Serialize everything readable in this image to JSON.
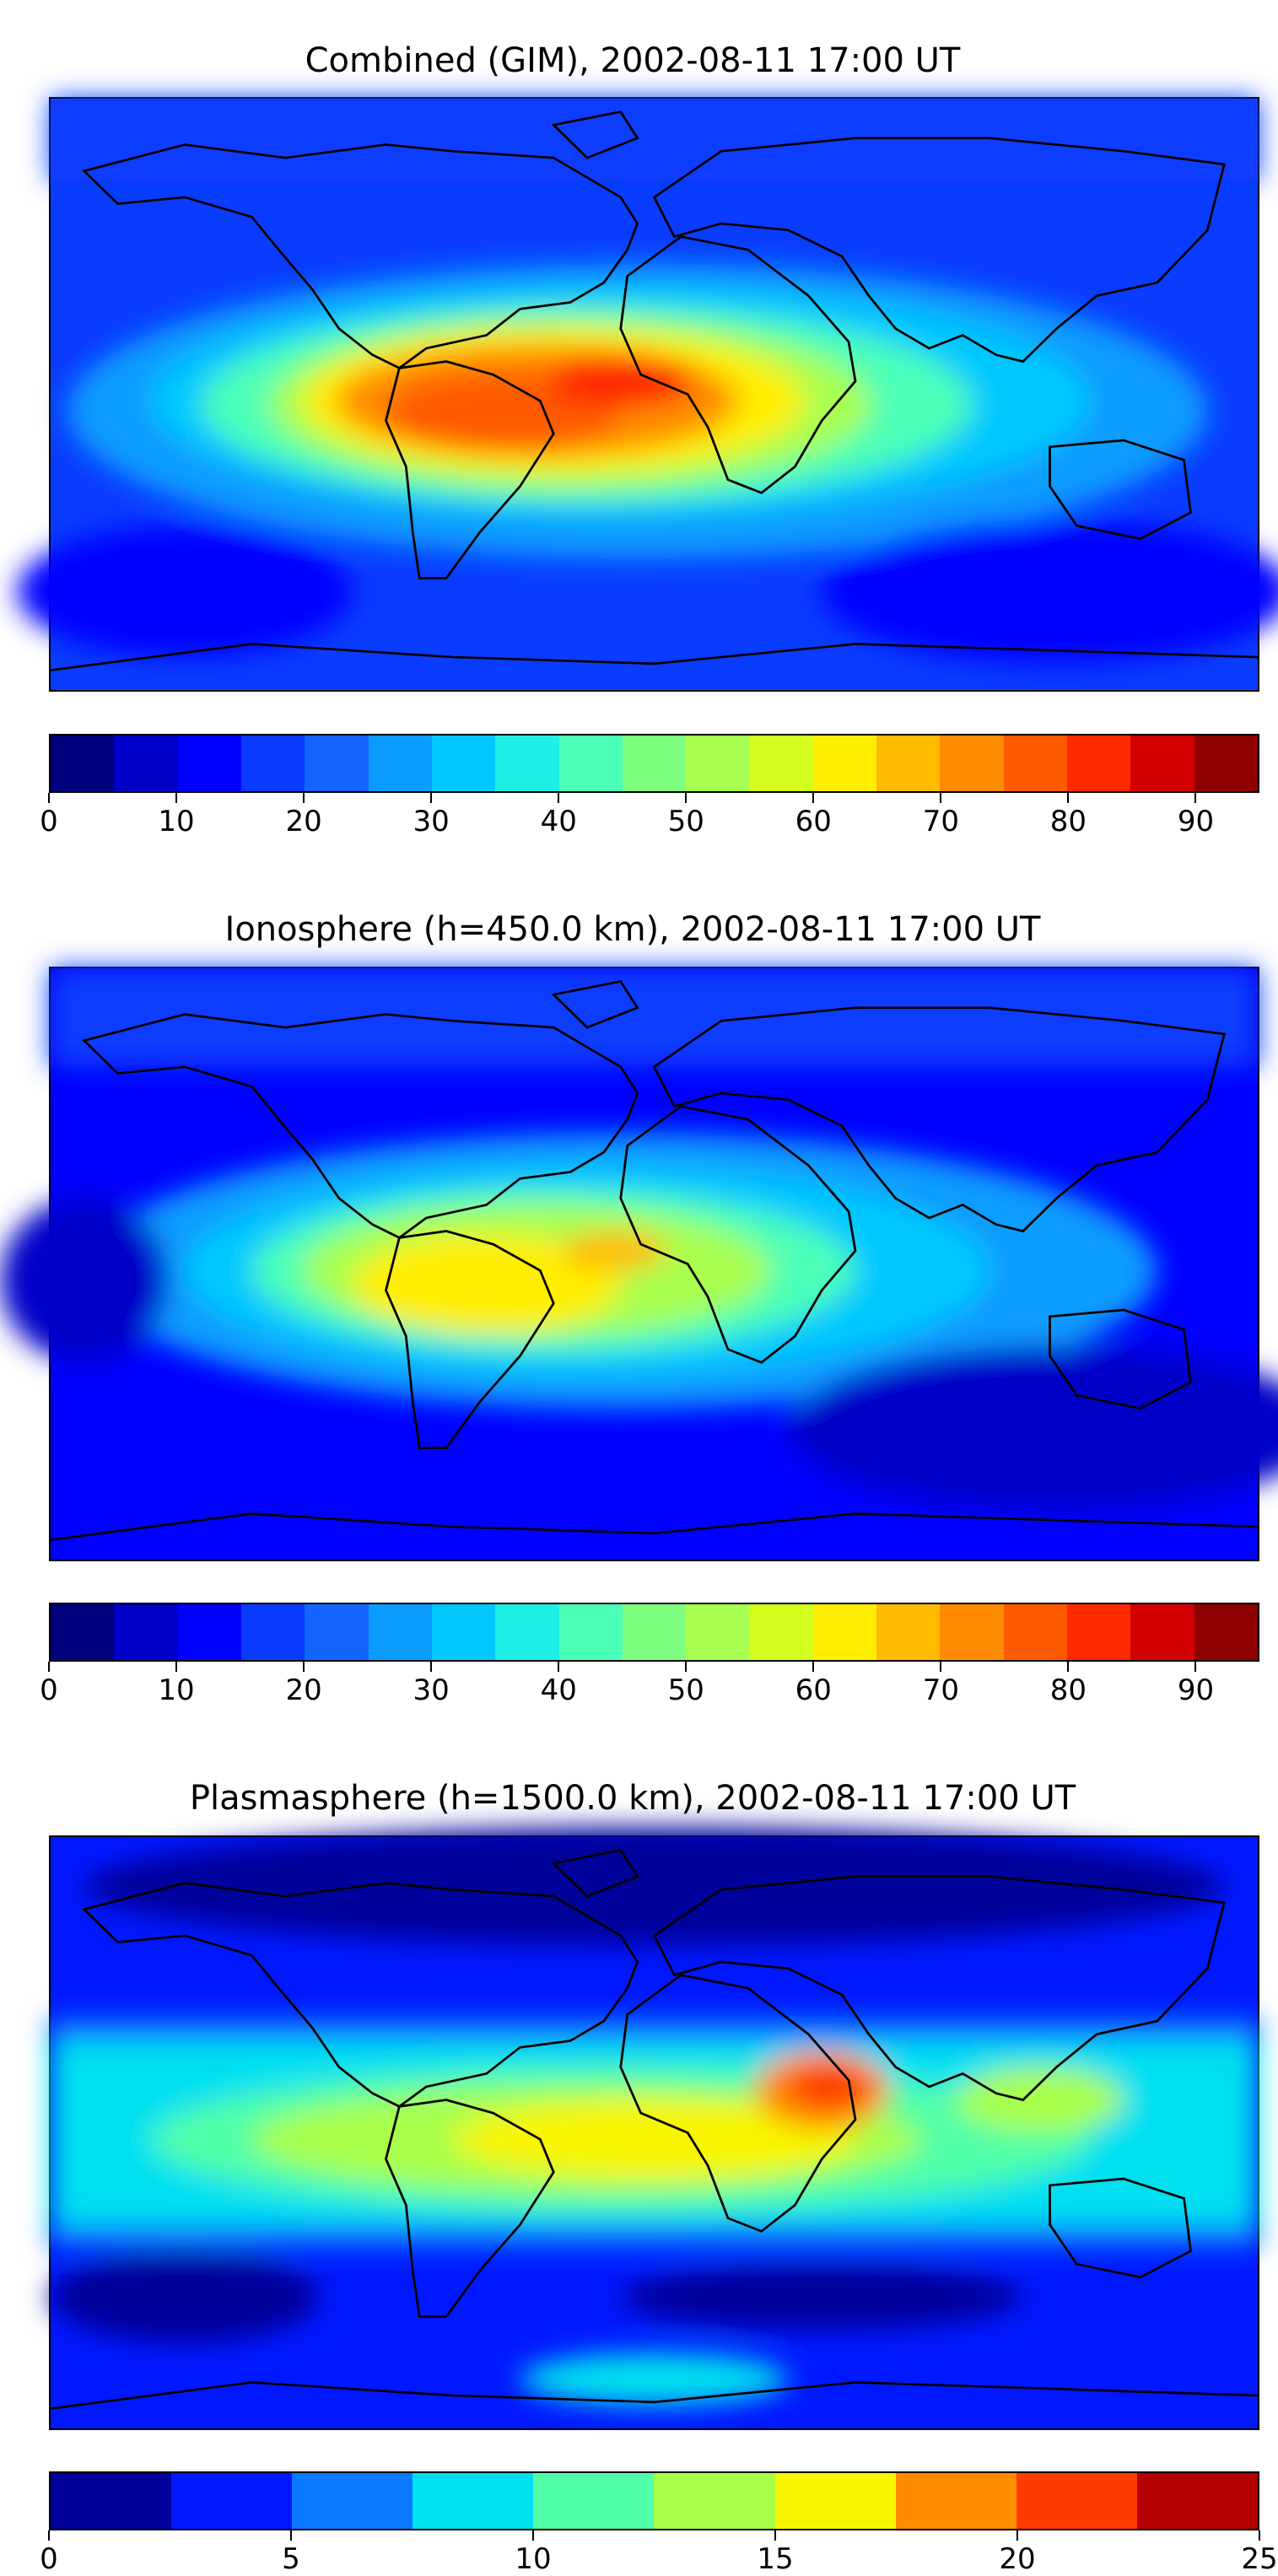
{
  "panels": [
    {
      "id": "combined",
      "title": "Combined (GIM), 2002-08-11 17:00 UT",
      "colorbar": {
        "vmin": 0,
        "vmax": 95,
        "step": 5,
        "ticks": [
          "0",
          "10",
          "20",
          "30",
          "40",
          "50",
          "60",
          "70",
          "80",
          "90"
        ],
        "tick_values": [
          0,
          10,
          20,
          30,
          40,
          50,
          60,
          70,
          80,
          90
        ],
        "colors": [
          "#00007f",
          "#0000c8",
          "#0000ff",
          "#0a3cff",
          "#1464ff",
          "#0a9cff",
          "#00c8ff",
          "#1ef0e6",
          "#4cffb8",
          "#7fff80",
          "#a8ff50",
          "#d4ff1e",
          "#ffee00",
          "#ffbb00",
          "#ff8c00",
          "#ff5a00",
          "#ff2800",
          "#d20000",
          "#8c0000"
        ]
      }
    },
    {
      "id": "ionosphere",
      "title": "Ionosphere  (h=450.0 km), 2002-08-11 17:00 UT",
      "colorbar": {
        "vmin": 0,
        "vmax": 95,
        "step": 5,
        "ticks": [
          "0",
          "10",
          "20",
          "30",
          "40",
          "50",
          "60",
          "70",
          "80",
          "90"
        ],
        "tick_values": [
          0,
          10,
          20,
          30,
          40,
          50,
          60,
          70,
          80,
          90
        ],
        "colors": [
          "#00007f",
          "#0000c8",
          "#0000ff",
          "#0a3cff",
          "#1464ff",
          "#0a9cff",
          "#00c8ff",
          "#1ef0e6",
          "#4cffb8",
          "#7fff80",
          "#a8ff50",
          "#d4ff1e",
          "#ffee00",
          "#ffbb00",
          "#ff8c00",
          "#ff5a00",
          "#ff2800",
          "#d20000",
          "#8c0000"
        ]
      }
    },
    {
      "id": "plasmasphere",
      "title": "Plasmasphere (h=1500.0 km), 2002-08-11 17:00 UT",
      "colorbar": {
        "vmin": 0,
        "vmax": 25,
        "step": 2.5,
        "ticks": [
          "0",
          "5",
          "10",
          "15",
          "20",
          "25"
        ],
        "tick_values": [
          0,
          5,
          10,
          15,
          20,
          25
        ],
        "colors": [
          "#00009a",
          "#0018ff",
          "#0a78ff",
          "#00e0f0",
          "#50ffa8",
          "#a8ff48",
          "#f8f500",
          "#ff8c00",
          "#ff3c00",
          "#b40000"
        ]
      }
    }
  ]
}
